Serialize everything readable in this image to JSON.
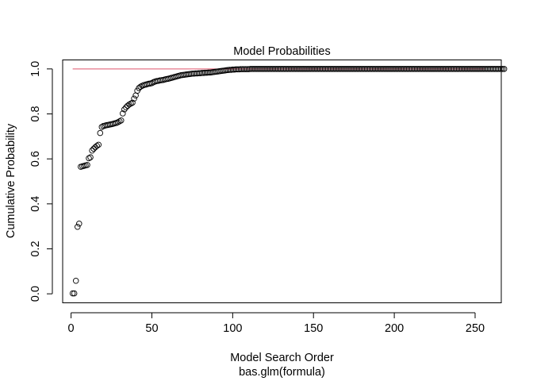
{
  "chart_data": {
    "type": "scatter",
    "title": "Model Probabilities",
    "xlabel": "Model Search Order",
    "subtitle": "bas.glm(formula)",
    "ylabel": "Cumulative Probability",
    "xlim": [
      -5.2,
      266.2
    ],
    "ylim": [
      -0.04,
      1.04
    ],
    "xticks": [
      0,
      50,
      100,
      150,
      200,
      250
    ],
    "xtick_labels": [
      "0",
      "50",
      "100",
      "150",
      "200",
      "250"
    ],
    "yticks": [
      0.0,
      0.2,
      0.4,
      0.6,
      0.8,
      1.0
    ],
    "ytick_labels": [
      "0.0",
      "0.2",
      "0.4",
      "0.6",
      "0.8",
      "1.0"
    ],
    "grid": false,
    "reference_line": {
      "y": 1.0,
      "x_from": 1,
      "x_to": 256,
      "color": "#DF536B"
    },
    "series": [
      {
        "marker": "open-circle",
        "color": "#000000",
        "x_start": 1,
        "values": [
          0.002,
          0.002,
          0.058,
          0.298,
          0.312,
          0.565,
          0.567,
          0.569,
          0.571,
          0.573,
          0.603,
          0.607,
          0.637,
          0.645,
          0.652,
          0.658,
          0.663,
          0.715,
          0.742,
          0.746,
          0.748,
          0.75,
          0.751,
          0.753,
          0.754,
          0.756,
          0.758,
          0.76,
          0.763,
          0.767,
          0.771,
          0.802,
          0.82,
          0.829,
          0.836,
          0.842,
          0.846,
          0.85,
          0.868,
          0.882,
          0.903,
          0.915,
          0.921,
          0.925,
          0.928,
          0.93,
          0.932,
          0.934,
          0.935,
          0.937,
          0.941,
          0.944,
          0.946,
          0.947,
          0.949,
          0.95,
          0.951,
          0.953,
          0.955,
          0.956,
          0.958,
          0.96,
          0.962,
          0.964,
          0.966,
          0.968,
          0.97,
          0.972,
          0.973,
          0.974,
          0.975,
          0.976,
          0.977,
          0.978,
          0.979,
          0.979,
          0.98,
          0.98,
          0.981,
          0.981,
          0.982,
          0.982,
          0.983,
          0.983,
          0.984,
          0.984,
          0.985,
          0.986,
          0.987,
          0.988,
          0.989,
          0.99,
          0.991,
          0.992,
          0.993,
          0.994,
          0.995,
          0.996,
          0.996,
          0.997,
          0.997,
          0.998,
          0.998,
          0.998,
          0.999,
          0.999,
          0.999,
          0.999,
          0.999,
          0.999,
          1.0,
          1.0,
          1.0,
          1.0,
          1.0,
          1.0,
          1.0,
          1.0,
          1.0,
          1.0,
          1.0,
          1.0,
          1.0,
          1.0,
          1.0,
          1.0,
          1.0,
          1.0,
          1.0,
          1.0,
          1.0,
          1.0,
          1.0,
          1.0,
          1.0,
          1.0,
          1.0,
          1.0,
          1.0,
          1.0,
          1.0,
          1.0,
          1.0,
          1.0,
          1.0,
          1.0,
          1.0,
          1.0,
          1.0,
          1.0,
          1.0,
          1.0,
          1.0,
          1.0,
          1.0,
          1.0,
          1.0,
          1.0,
          1.0,
          1.0,
          1.0,
          1.0,
          1.0,
          1.0,
          1.0,
          1.0,
          1.0,
          1.0,
          1.0,
          1.0,
          1.0,
          1.0,
          1.0,
          1.0,
          1.0,
          1.0,
          1.0,
          1.0,
          1.0,
          1.0,
          1.0,
          1.0,
          1.0,
          1.0,
          1.0,
          1.0,
          1.0,
          1.0,
          1.0,
          1.0,
          1.0,
          1.0,
          1.0,
          1.0,
          1.0,
          1.0,
          1.0,
          1.0,
          1.0,
          1.0,
          1.0,
          1.0,
          1.0,
          1.0,
          1.0,
          1.0,
          1.0,
          1.0,
          1.0,
          1.0,
          1.0,
          1.0,
          1.0,
          1.0,
          1.0,
          1.0,
          1.0,
          1.0,
          1.0,
          1.0,
          1.0,
          1.0,
          1.0,
          1.0,
          1.0,
          1.0,
          1.0,
          1.0,
          1.0,
          1.0,
          1.0,
          1.0,
          1.0,
          1.0,
          1.0,
          1.0,
          1.0,
          1.0,
          1.0,
          1.0,
          1.0,
          1.0,
          1.0,
          1.0,
          1.0,
          1.0,
          1.0,
          1.0,
          1.0,
          1.0,
          1.0,
          1.0,
          1.0,
          1.0,
          1.0,
          1.0,
          1.0,
          1.0,
          1.0,
          1.0,
          1.0,
          1.0,
          1.0,
          1.0,
          1.0,
          1.0,
          1.0,
          1.0
        ]
      }
    ]
  }
}
